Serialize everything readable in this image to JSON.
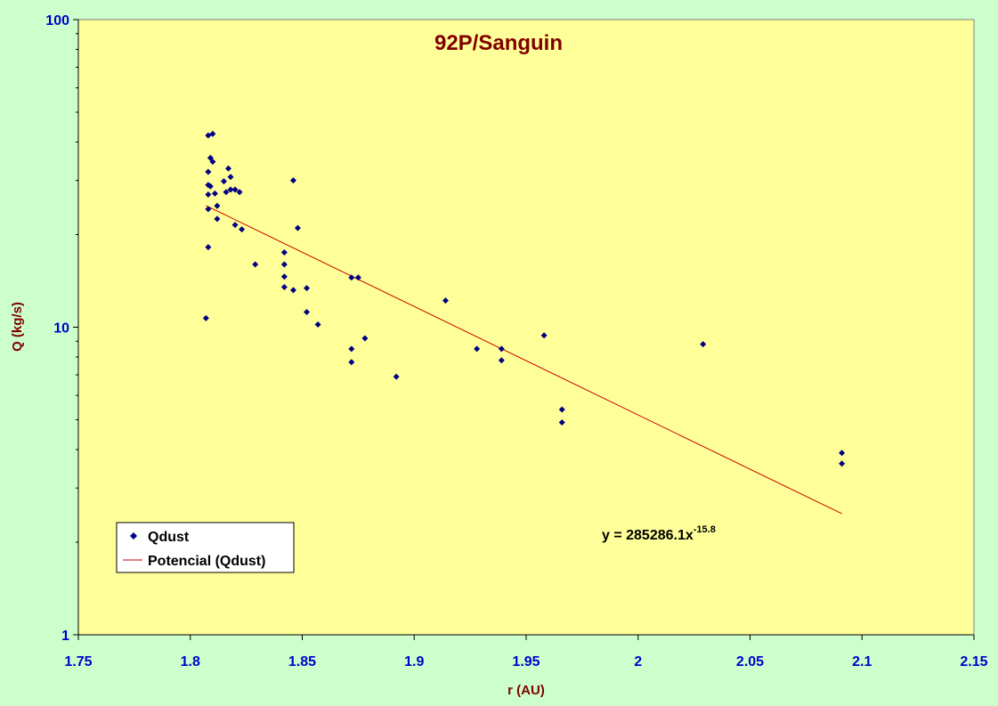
{
  "chart_data": {
    "type": "scatter",
    "title": "92P/Sanguin",
    "xlabel": "r (AU)",
    "ylabel": "Q (kg/s)",
    "xlim": [
      1.75,
      2.15
    ],
    "ylim": [
      1,
      100
    ],
    "yscale": "log",
    "x_ticks": [
      "1.75",
      "1.8",
      "1.85",
      "1.9",
      "1.95",
      "2",
      "2.05",
      "2.1",
      "2.15"
    ],
    "y_ticks": [
      "1",
      "10",
      "100"
    ],
    "grid": false,
    "legend_position": "bottom-left",
    "series": [
      {
        "name": "Qdust",
        "marker": "diamond",
        "color": "#000080",
        "points": [
          [
            1.808,
            42.0
          ],
          [
            1.81,
            42.5
          ],
          [
            1.809,
            35.5
          ],
          [
            1.81,
            34.5
          ],
          [
            1.808,
            32.0
          ],
          [
            1.808,
            29.0
          ],
          [
            1.809,
            28.7
          ],
          [
            1.808,
            27.0
          ],
          [
            1.811,
            27.2
          ],
          [
            1.815,
            29.8
          ],
          [
            1.816,
            27.5
          ],
          [
            1.817,
            32.8
          ],
          [
            1.818,
            30.8
          ],
          [
            1.818,
            28.0
          ],
          [
            1.82,
            28.0
          ],
          [
            1.822,
            27.5
          ],
          [
            1.812,
            24.8
          ],
          [
            1.808,
            24.2
          ],
          [
            1.812,
            22.5
          ],
          [
            1.82,
            21.5
          ],
          [
            1.823,
            20.8
          ],
          [
            1.808,
            18.2
          ],
          [
            1.807,
            10.7
          ],
          [
            1.829,
            16.0
          ],
          [
            1.846,
            30.0
          ],
          [
            1.848,
            21.0
          ],
          [
            1.842,
            17.5
          ],
          [
            1.842,
            16.0
          ],
          [
            1.842,
            14.6
          ],
          [
            1.842,
            13.5
          ],
          [
            1.846,
            13.2
          ],
          [
            1.852,
            13.4
          ],
          [
            1.852,
            11.2
          ],
          [
            1.857,
            10.2
          ],
          [
            1.872,
            14.5
          ],
          [
            1.875,
            14.5
          ],
          [
            1.872,
            8.5
          ],
          [
            1.872,
            7.7
          ],
          [
            1.878,
            9.2
          ],
          [
            1.892,
            6.9
          ],
          [
            1.914,
            12.2
          ],
          [
            1.928,
            8.5
          ],
          [
            1.939,
            8.5
          ],
          [
            1.939,
            7.8
          ],
          [
            1.958,
            9.4
          ],
          [
            1.966,
            5.4
          ],
          [
            1.966,
            4.9
          ],
          [
            2.029,
            8.8
          ],
          [
            2.091,
            3.9
          ],
          [
            2.091,
            3.6
          ]
        ]
      },
      {
        "name": "Potencial (Qdust)",
        "type": "line",
        "color": "#cc0000",
        "x_range": [
          1.807,
          2.091
        ],
        "coefficient": 285286.1,
        "exponent": -15.8
      }
    ],
    "annotations": {
      "equation": "y = 285286.1x",
      "equation_exponent": "-15.8"
    }
  }
}
